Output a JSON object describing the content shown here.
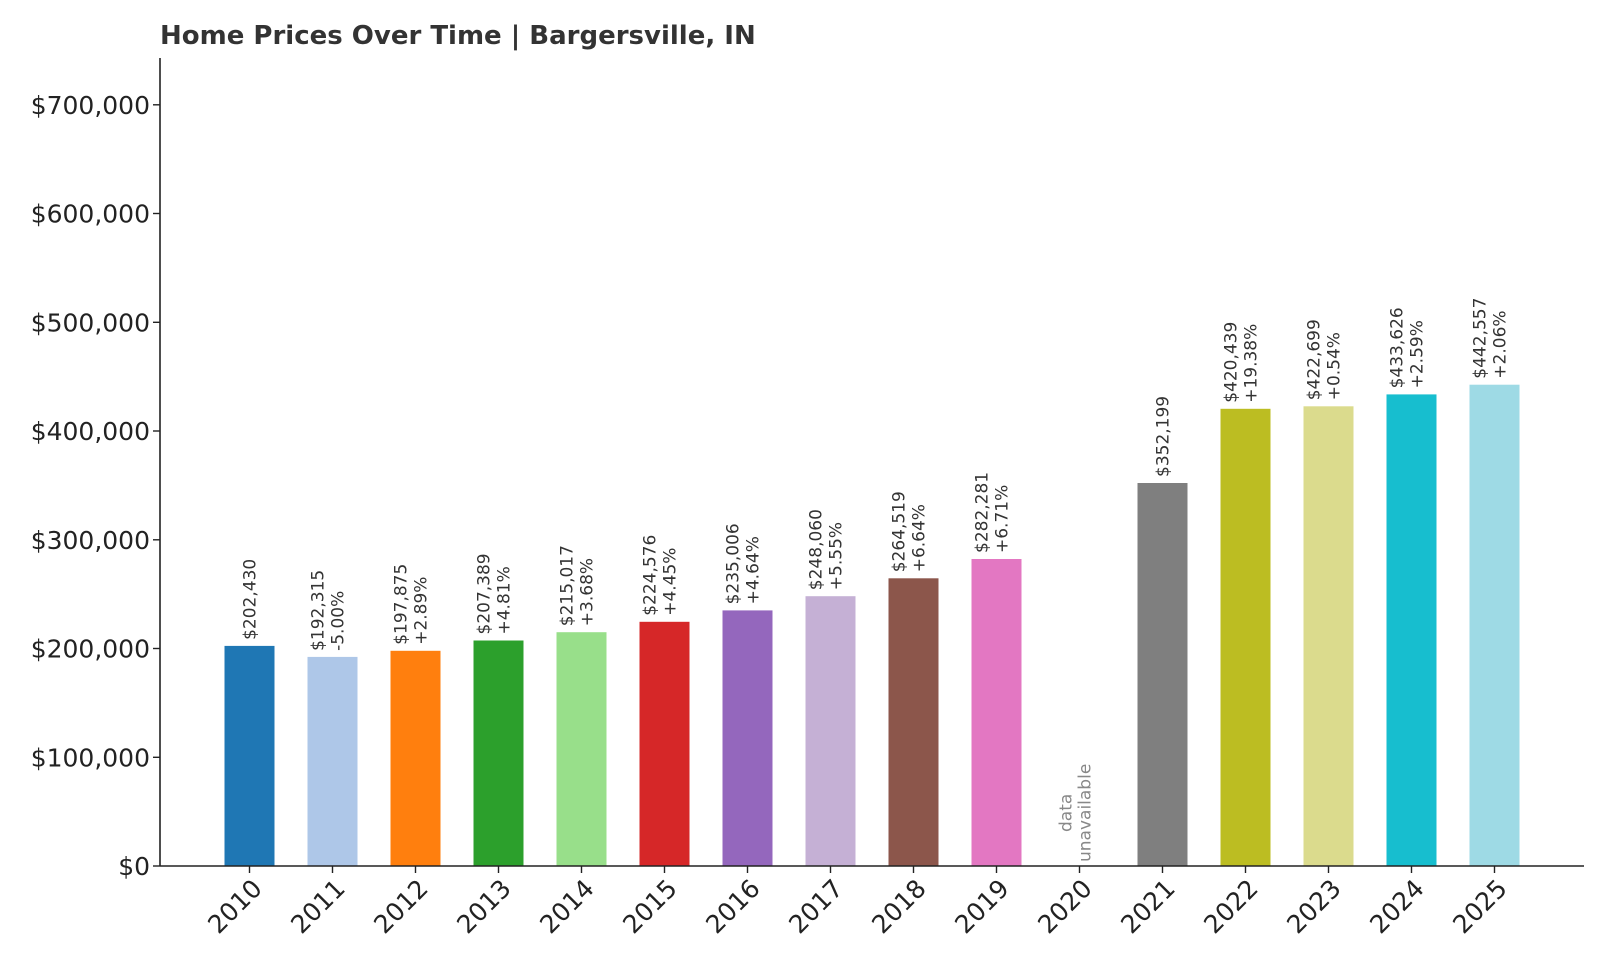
{
  "chart_data": {
    "type": "bar",
    "title": "Home Prices Over Time | Bargersville, IN",
    "xlabel": "",
    "ylabel": "",
    "ylim": [
      0,
      743000
    ],
    "yticks": [
      0,
      100000,
      200000,
      300000,
      400000,
      500000,
      600000,
      700000
    ],
    "ytick_labels": [
      "$0",
      "$100,000",
      "$200,000",
      "$300,000",
      "$400,000",
      "$500,000",
      "$600,000",
      "$700,000"
    ],
    "grid": false,
    "legend": "none",
    "categories": [
      "2010",
      "2011",
      "2012",
      "2013",
      "2014",
      "2015",
      "2016",
      "2017",
      "2018",
      "2019",
      "2020",
      "2021",
      "2022",
      "2023",
      "2024",
      "2025"
    ],
    "values": [
      202430,
      192315,
      197875,
      207389,
      215017,
      224576,
      235006,
      248060,
      264519,
      282281,
      null,
      352199,
      420439,
      422699,
      433626,
      442557
    ],
    "value_labels": [
      "$202,430",
      "$192,315",
      "$197,875",
      "$207,389",
      "$215,017",
      "$224,576",
      "$235,006",
      "$248,060",
      "$264,519",
      "$282,281",
      "",
      "$352,199",
      "$420,439",
      "$422,699",
      "$433,626",
      "$442,557"
    ],
    "change_labels": [
      "",
      "-5.00%",
      "+2.89%",
      "+4.81%",
      "+3.68%",
      "+4.45%",
      "+4.64%",
      "+5.55%",
      "+6.64%",
      "+6.71%",
      "",
      "",
      "+19.38%",
      "+0.54%",
      "+2.59%",
      "+2.06%"
    ],
    "unavailable_label_lines": [
      "data",
      "unavailable"
    ],
    "colors": [
      "#1f77b4",
      "#aec7e8",
      "#ff7f0e",
      "#2ca02c",
      "#98df8a",
      "#d62728",
      "#9467bd",
      "#c5b0d5",
      "#8c564b",
      "#e377c2",
      "#f7b6d2",
      "#7f7f7f",
      "#bcbd22",
      "#dbdb8d",
      "#17becf",
      "#9edae5"
    ]
  }
}
